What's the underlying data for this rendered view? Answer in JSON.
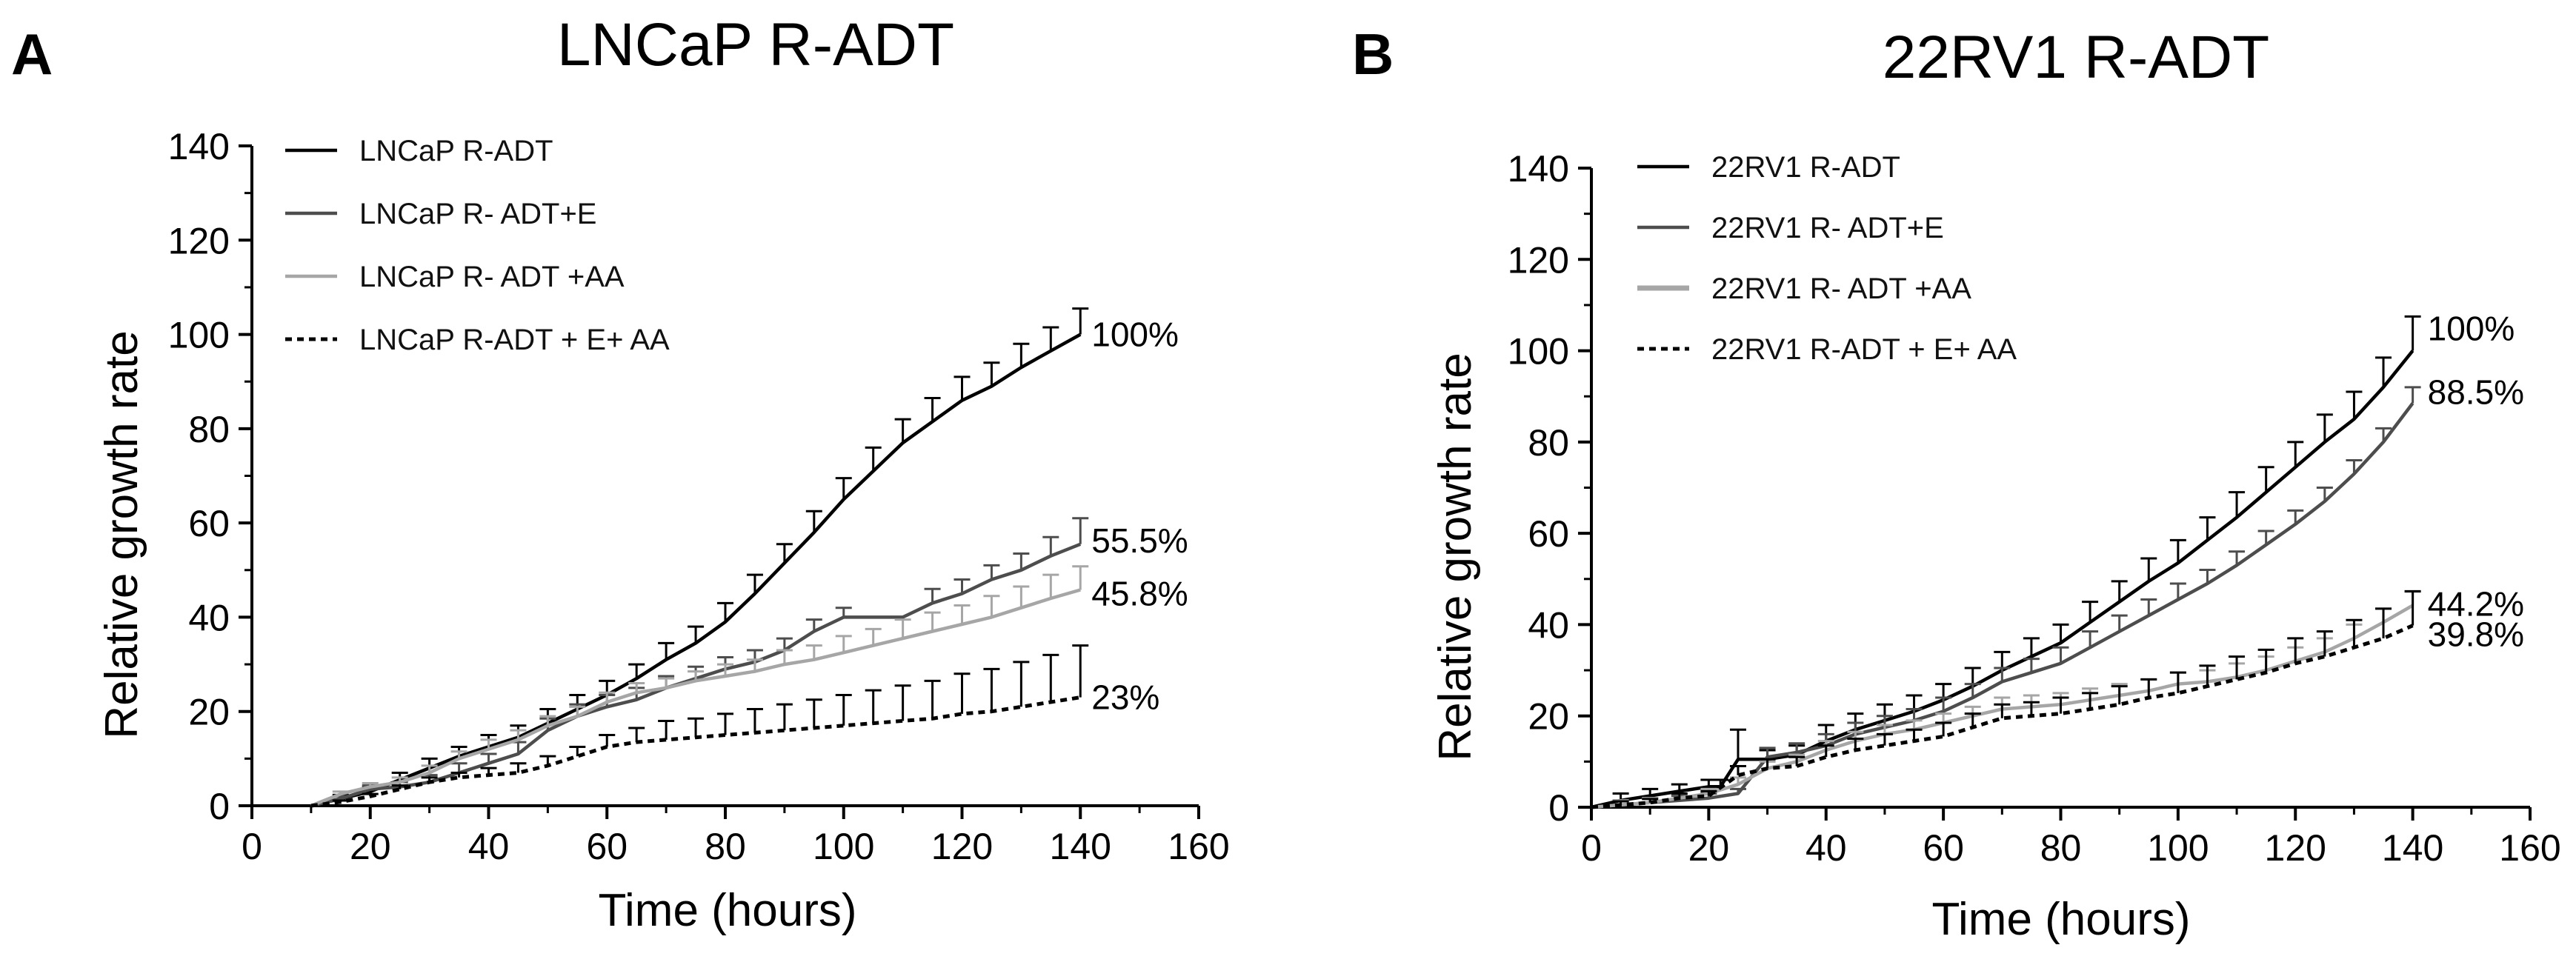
{
  "chart_data": [
    {
      "panel": "A",
      "type": "line",
      "title": "LNCaP R-ADT",
      "xlabel": "Time (hours)",
      "ylabel": "Relative growth rate",
      "xlim": [
        0,
        160
      ],
      "ylim": [
        0,
        140
      ],
      "xticks": [
        "0",
        "20",
        "40",
        "60",
        "80",
        "100",
        "120",
        "140",
        "160"
      ],
      "yticks": [
        "0",
        "20",
        "40",
        "60",
        "80",
        "100",
        "120",
        "140"
      ],
      "legend_position": "top-left",
      "series": [
        {
          "name": "LNCaP R-ADT",
          "color": "#000000",
          "style": "solid",
          "end_label": "100%",
          "x": [
            10,
            15,
            20,
            25,
            30,
            35,
            40,
            45,
            50,
            55,
            60,
            65,
            70,
            75,
            80,
            85,
            90,
            95,
            100,
            105,
            110,
            115,
            120,
            125,
            130,
            135,
            140
          ],
          "y": [
            0,
            1.5,
            3,
            5.5,
            8,
            10.5,
            12.5,
            14.5,
            17.5,
            20.5,
            23.5,
            27,
            31,
            34.5,
            39,
            45,
            51.5,
            58,
            65,
            71,
            77,
            81.5,
            86,
            89,
            93,
            96.5,
            100
          ],
          "err": [
            0,
            0.8,
            1,
            1.5,
            2,
            2,
            2.5,
            2.5,
            3,
            3,
            3,
            3,
            3.5,
            3.5,
            4,
            4,
            4,
            4.5,
            4.5,
            5,
            5,
            5,
            5,
            5,
            5,
            5,
            5.5
          ]
        },
        {
          "name": "LNCaP R- ADT+E",
          "color": "#4d4d4d",
          "style": "solid",
          "end_label": "55.5%",
          "x": [
            10,
            15,
            20,
            25,
            30,
            35,
            40,
            45,
            50,
            55,
            60,
            65,
            70,
            75,
            80,
            85,
            90,
            95,
            100,
            105,
            110,
            115,
            120,
            125,
            130,
            135,
            140
          ],
          "y": [
            0,
            1.5,
            3.5,
            4,
            5,
            7,
            9,
            11,
            16,
            19,
            21,
            22.5,
            25,
            27,
            29,
            30.5,
            33,
            37,
            40,
            40,
            40,
            43,
            45,
            48,
            50,
            53,
            55.5
          ],
          "err": [
            0,
            0.5,
            0.8,
            1,
            1.5,
            2,
            2,
            2.5,
            2.5,
            2.5,
            2.5,
            2.5,
            2.5,
            2.5,
            2.5,
            2.5,
            2.5,
            2.5,
            2,
            0,
            0,
            3,
            3,
            3,
            3.5,
            4,
            5.5
          ]
        },
        {
          "name": "LNCaP R- ADT +AA",
          "color": "#a6a6a6",
          "style": "solid",
          "end_label": "45.8%",
          "x": [
            10,
            15,
            20,
            25,
            30,
            35,
            40,
            45,
            50,
            55,
            60,
            65,
            70,
            75,
            80,
            85,
            90,
            95,
            100,
            105,
            110,
            115,
            120,
            125,
            130,
            135,
            140
          ],
          "y": [
            0,
            2.5,
            4,
            5,
            7,
            10,
            12,
            14,
            17,
            19,
            22,
            24,
            25,
            26.5,
            27.5,
            28.5,
            30,
            31,
            32.5,
            34,
            35.5,
            37,
            38.5,
            40,
            42,
            44,
            45.8
          ],
          "err": [
            0,
            0.5,
            0.8,
            1,
            1.5,
            1.5,
            2,
            2,
            2,
            2,
            2,
            2,
            2,
            2,
            2.5,
            2.5,
            3,
            3,
            3.5,
            3.5,
            4,
            4,
            4,
            4.5,
            4.5,
            5,
            5
          ]
        },
        {
          "name": "LNCaP R-ADT + E+ AA",
          "color": "#000000",
          "style": "dotted",
          "end_label": "23%",
          "x": [
            10,
            15,
            20,
            25,
            30,
            35,
            40,
            45,
            50,
            55,
            60,
            65,
            70,
            75,
            80,
            85,
            90,
            95,
            100,
            105,
            110,
            115,
            120,
            125,
            130,
            135,
            140
          ],
          "y": [
            0,
            0.8,
            2,
            3.5,
            5,
            6,
            6.5,
            7,
            8.5,
            10.5,
            12.5,
            13.5,
            14,
            14.5,
            15,
            15.5,
            16,
            16.5,
            17,
            17.5,
            18,
            18.5,
            19.5,
            20,
            21,
            22,
            23
          ],
          "err": [
            0,
            0.3,
            0.5,
            0.8,
            1,
            1,
            1.5,
            2,
            2,
            2,
            2.5,
            3,
            4,
            4,
            4.5,
            5,
            5.5,
            6,
            6.5,
            7,
            7.5,
            8,
            8.5,
            9,
            9.5,
            10,
            11
          ]
        }
      ]
    },
    {
      "panel": "B",
      "type": "line",
      "title": "22RV1 R-ADT",
      "xlabel": "Time (hours)",
      "ylabel": "Relative growth rate",
      "xlim": [
        0,
        160
      ],
      "ylim": [
        0,
        140
      ],
      "xticks": [
        "0",
        "20",
        "40",
        "60",
        "80",
        "100",
        "120",
        "140",
        "160"
      ],
      "yticks": [
        "0",
        "20",
        "40",
        "60",
        "80",
        "100",
        "120",
        "140"
      ],
      "legend_position": "top-left",
      "series": [
        {
          "name": "22RV1 R-ADT",
          "color": "#000000",
          "style": "solid",
          "end_label": "100%",
          "x": [
            0,
            5,
            10,
            15,
            20,
            22,
            25,
            30,
            35,
            40,
            45,
            50,
            55,
            60,
            65,
            70,
            75,
            80,
            85,
            90,
            95,
            100,
            105,
            110,
            115,
            120,
            125,
            130,
            135,
            140
          ],
          "y": [
            0,
            1.5,
            2.5,
            3.5,
            4.5,
            4.5,
            10.5,
            10.5,
            11.5,
            14.5,
            17,
            19,
            21,
            23.5,
            26.5,
            30,
            33,
            36,
            40.5,
            45,
            49.5,
            53.5,
            58.5,
            63.5,
            69,
            74.5,
            80,
            85,
            92,
            100
          ],
          "err": [
            0,
            1.5,
            1.5,
            1.5,
            1.5,
            1.5,
            6.5,
            2,
            2,
            3.5,
            3.5,
            3.5,
            3.5,
            3.5,
            4,
            4,
            4,
            4,
            4.5,
            4.5,
            5,
            5,
            5,
            5.5,
            5.5,
            5.5,
            6,
            6,
            6.5,
            7.5
          ]
        },
        {
          "name": "22RV1 R- ADT+E",
          "color": "#4d4d4d",
          "style": "solid",
          "end_label": "88.5%",
          "x": [
            0,
            5,
            10,
            15,
            20,
            25,
            30,
            35,
            40,
            45,
            50,
            55,
            60,
            65,
            70,
            75,
            80,
            85,
            90,
            95,
            100,
            105,
            110,
            115,
            120,
            125,
            130,
            135,
            140
          ],
          "y": [
            0,
            0.5,
            1,
            1.5,
            2,
            3,
            11,
            12,
            13.5,
            16,
            17.5,
            19,
            21,
            24,
            27.5,
            29.5,
            31.5,
            35,
            38.5,
            42,
            45.5,
            49,
            53,
            57.5,
            62,
            67,
            73,
            80,
            88.5
          ],
          "err": [
            0,
            1,
            1,
            1,
            1,
            1,
            2,
            2,
            2.5,
            2.5,
            2.5,
            2.5,
            3,
            3,
            3,
            3,
            3.5,
            3.5,
            3.5,
            3.5,
            3.5,
            3,
            3,
            3,
            3,
            3,
            3,
            3,
            3.5
          ]
        },
        {
          "name": "22RV1 R- ADT +AA",
          "color": "#a6a6a6",
          "style": "solid",
          "end_label": "44.2%",
          "x": [
            0,
            5,
            10,
            15,
            20,
            25,
            30,
            35,
            40,
            45,
            50,
            55,
            60,
            65,
            70,
            75,
            80,
            85,
            90,
            95,
            100,
            105,
            110,
            115,
            120,
            125,
            130,
            135,
            140
          ],
          "y": [
            0,
            0.5,
            1,
            2,
            3,
            5,
            8.5,
            10,
            12.5,
            14.5,
            16,
            17,
            18.5,
            20,
            21.5,
            22,
            22.5,
            23.5,
            24.5,
            25.5,
            27,
            27.5,
            28.5,
            30,
            32,
            34,
            37,
            40.5,
            44.2
          ],
          "err": [
            0,
            1,
            1,
            1,
            1,
            1.5,
            1.5,
            1.5,
            2,
            2,
            2,
            2,
            2,
            2,
            2.5,
            2.5,
            2.5,
            2.5,
            2.5,
            2.5,
            2.5,
            2.5,
            3,
            3,
            3,
            3,
            3,
            3,
            3
          ]
        },
        {
          "name": "22RV1 R-ADT + E+ AA",
          "color": "#000000",
          "style": "dotted",
          "end_label": "39.8%",
          "x": [
            0,
            5,
            10,
            15,
            20,
            25,
            30,
            35,
            40,
            45,
            50,
            55,
            60,
            65,
            70,
            75,
            80,
            85,
            90,
            95,
            100,
            105,
            110,
            115,
            120,
            125,
            130,
            135,
            140
          ],
          "y": [
            0,
            0.5,
            1,
            2,
            2.5,
            7,
            8.5,
            9,
            11,
            12.5,
            13.5,
            14.5,
            15.5,
            17.5,
            19.5,
            20,
            20.5,
            21.5,
            22.5,
            24,
            25,
            26.5,
            28,
            29.5,
            31.5,
            33,
            35,
            37,
            39.8
          ],
          "err": [
            0,
            0.8,
            0.8,
            1,
            1,
            2,
            2,
            2,
            2.5,
            2.5,
            2.5,
            2.5,
            3,
            3,
            3,
            3,
            3.5,
            3.5,
            4,
            4,
            4.5,
            4.5,
            5,
            5,
            5.5,
            5.5,
            6,
            6.5,
            7.5
          ]
        }
      ]
    }
  ]
}
